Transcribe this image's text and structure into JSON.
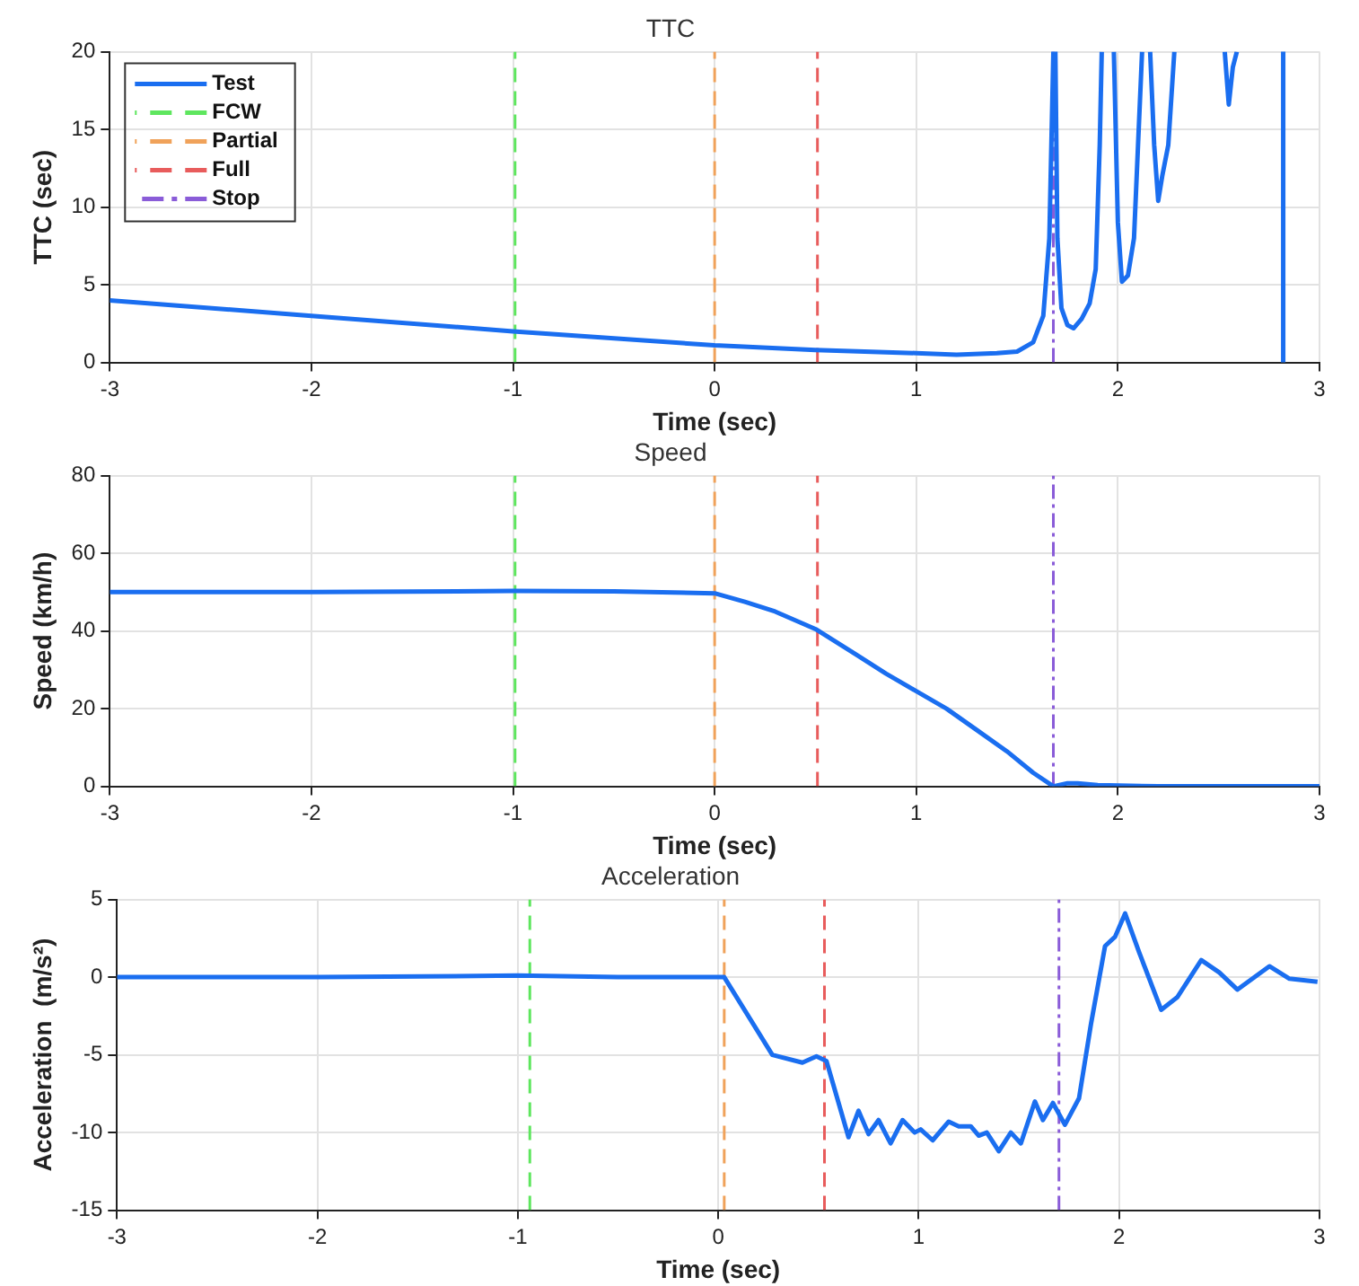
{
  "chart_data": [
    {
      "type": "line",
      "title": "TTC",
      "xlabel": "Time (sec)",
      "ylabel": "TTC (sec)",
      "xlim": [
        -3,
        3
      ],
      "xticks": [
        -3,
        -2,
        -1,
        0,
        1,
        2,
        3
      ],
      "ylim": [
        0,
        20
      ],
      "yticks": [
        0,
        5,
        10,
        15,
        20
      ],
      "grid": true,
      "legend": "top left",
      "line_style": "solid",
      "series": [
        {
          "name": "Test",
          "color": "#1a6ef0",
          "x": [
            -3,
            -2,
            -1,
            0,
            0.5,
            1,
            1.2,
            1.4,
            1.5,
            1.58,
            1.63,
            1.66,
            1.68,
            1.69,
            1.7,
            1.72,
            1.75,
            1.78,
            1.82,
            1.86,
            1.89,
            1.91,
            1.92,
            1.96,
            1.98,
            2.0,
            2.02,
            2.05,
            2.08,
            2.1,
            2.12,
            2.13,
            2.16,
            2.18,
            2.2,
            2.22,
            2.25,
            2.28,
            2.29,
            2.53,
            2.55,
            2.57,
            2.59,
            2.61,
            2.7,
            2.82,
            2.82
          ],
          "values": [
            4,
            3,
            2,
            1.1,
            0.8,
            0.6,
            0.5,
            0.6,
            0.7,
            1.3,
            3,
            8,
            20,
            20,
            8,
            3.5,
            2.4,
            2.2,
            2.8,
            3.8,
            6,
            14,
            20,
            null,
            20,
            9,
            5.2,
            5.6,
            8,
            14,
            20,
            null,
            20,
            14,
            10.4,
            12,
            14,
            20,
            null,
            20,
            16.6,
            19,
            20,
            null,
            null,
            20,
            0
          ]
        },
        {
          "name": "FCW",
          "color": "#5ee65e",
          "line_style": "dashed",
          "x": [
            -0.99,
            -0.99
          ],
          "values": [
            0,
            20
          ]
        },
        {
          "name": "Partial",
          "color": "#f0a25a",
          "line_style": "dashed",
          "x": [
            0,
            0
          ],
          "values": [
            0,
            20
          ]
        },
        {
          "name": "Full",
          "color": "#e85c5c",
          "line_style": "dashed",
          "x": [
            0.51,
            0.51
          ],
          "values": [
            0,
            20
          ]
        },
        {
          "name": "Stop",
          "color": "#8a5cd8",
          "line_style": "dashdot",
          "x": [
            1.68,
            1.68
          ],
          "values": [
            0,
            20
          ]
        }
      ]
    },
    {
      "type": "line",
      "title": "Speed",
      "xlabel": "Time (sec)",
      "ylabel": "Speed (km/h)",
      "xlim": [
        -3,
        3
      ],
      "xticks": [
        -3,
        -2,
        -1,
        0,
        1,
        2,
        3
      ],
      "ylim": [
        0,
        80
      ],
      "yticks": [
        0,
        20,
        40,
        60,
        80
      ],
      "grid": true,
      "line_style": "solid",
      "series": [
        {
          "color": "#1a6ef0",
          "x": [
            -3,
            -2,
            -1,
            -0.5,
            0,
            0.15,
            0.3,
            0.5,
            0.7,
            0.85,
            1.0,
            1.15,
            1.3,
            1.45,
            1.58,
            1.68,
            1.75,
            1.8,
            1.9,
            2.2,
            3
          ],
          "values": [
            50,
            50,
            50.3,
            50.2,
            49.7,
            47.5,
            45,
            40.5,
            34,
            29,
            24.5,
            20,
            14.5,
            9,
            3.5,
            0,
            0.8,
            0.8,
            0.3,
            0,
            0
          ]
        },
        {
          "color": "#5ee65e",
          "line_style": "dashed",
          "x": [
            -0.99,
            -0.99
          ],
          "values": [
            0,
            80
          ]
        },
        {
          "color": "#f0a25a",
          "line_style": "dashed",
          "x": [
            0,
            0
          ],
          "values": [
            0,
            80
          ]
        },
        {
          "color": "#e85c5c",
          "line_style": "dashed",
          "x": [
            0.51,
            0.51
          ],
          "values": [
            0,
            80
          ]
        },
        {
          "color": "#8a5cd8",
          "line_style": "dashdot",
          "x": [
            1.68,
            1.68
          ],
          "values": [
            0,
            80
          ]
        }
      ]
    },
    {
      "type": "line",
      "title": "Acceleration",
      "xlabel": "Time (sec)",
      "ylabel": "Acceleration  (m/s²)",
      "xlim": [
        -3,
        3
      ],
      "xticks": [
        -3,
        -2,
        -1,
        0,
        1,
        2,
        3
      ],
      "ylim": [
        -15,
        5
      ],
      "yticks": [
        -15,
        -10,
        -5,
        0,
        5
      ],
      "grid": true,
      "line_style": "solid",
      "series": [
        {
          "color": "#1a6ef0",
          "x": [
            -3,
            -2,
            -1,
            -0.5,
            0.03,
            0.27,
            0.42,
            0.49,
            0.54,
            0.65,
            0.7,
            0.75,
            0.8,
            0.86,
            0.92,
            0.98,
            1.01,
            1.07,
            1.15,
            1.2,
            1.26,
            1.3,
            1.34,
            1.4,
            1.46,
            1.51,
            1.58,
            1.62,
            1.67,
            1.73,
            1.8,
            1.86,
            1.93,
            1.98,
            2.03,
            2.1,
            2.21,
            2.29,
            2.41,
            2.5,
            2.59,
            2.75,
            2.85,
            2.99
          ],
          "values": [
            0,
            0,
            0.1,
            0,
            0,
            -5,
            -5.5,
            -5.1,
            -5.4,
            -10.3,
            -8.6,
            -10.1,
            -9.2,
            -10.7,
            -9.2,
            -10,
            -9.8,
            -10.5,
            -9.3,
            -9.6,
            -9.6,
            -10.2,
            -10,
            -11.2,
            -10,
            -10.7,
            -8,
            -9.2,
            -8.1,
            -9.5,
            -7.8,
            -3,
            2,
            2.6,
            4.1,
            1.6,
            -2.1,
            -1.3,
            1.1,
            0.3,
            -0.8,
            0.7,
            -0.1,
            -0.3
          ]
        },
        {
          "color": "#5ee65e",
          "line_style": "dashed",
          "x": [
            -0.94,
            -0.94
          ],
          "values": [
            -15,
            5
          ]
        },
        {
          "color": "#f0a25a",
          "line_style": "dashed",
          "x": [
            0.03,
            0.03
          ],
          "values": [
            -15,
            5
          ]
        },
        {
          "color": "#e85c5c",
          "line_style": "dashed",
          "x": [
            0.53,
            0.53
          ],
          "values": [
            -15,
            5
          ]
        },
        {
          "color": "#8a5cd8",
          "line_style": "dashdot",
          "x": [
            1.7,
            1.7
          ],
          "values": [
            -15,
            5
          ]
        }
      ]
    }
  ]
}
